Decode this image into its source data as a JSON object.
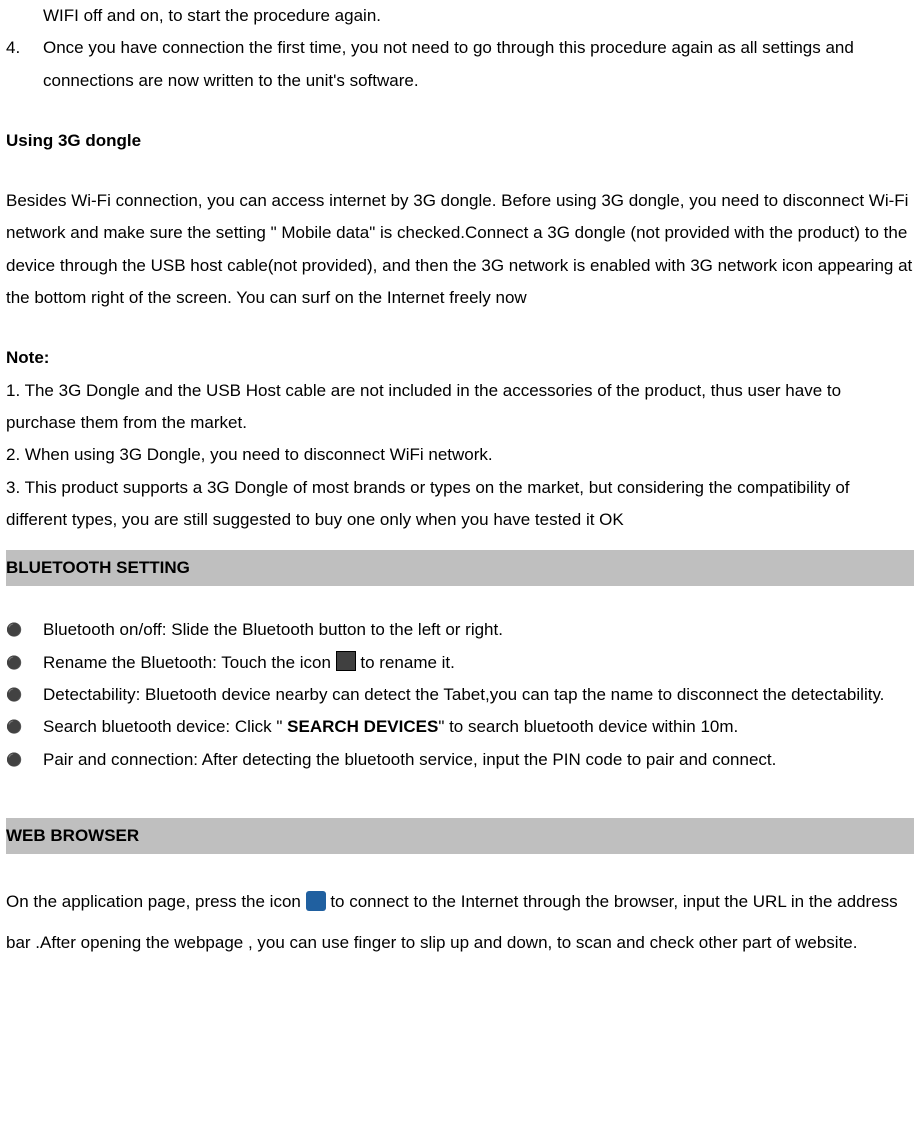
{
  "list_top": {
    "item3_cont": "WIFI off and on, to start the procedure again.",
    "item4_num": "4.",
    "item4_text": "Once you have connection the first time, you not need to go through this procedure again as all settings and connections are now written to the unit's software."
  },
  "dongle": {
    "heading": "Using 3G dongle",
    "para": "Besides Wi-Fi connection, you can access internet by 3G dongle. Before using 3G dongle, you need to disconnect Wi-Fi network and make sure the setting \" Mobile data\" is checked.Connect a 3G dongle (not provided with the product) to the device through the USB host cable(not provided), and then the 3G network is enabled with 3G network icon appearing at the bottom right of the screen. You can surf on the Internet freely now"
  },
  "note": {
    "label": "Note:",
    "n1": "1. The 3G Dongle and the USB Host cable are not included in the accessories of the product, thus user have to purchase them from the market.",
    "n2": "2. When using 3G Dongle, you need to disconnect WiFi network.",
    "n3": "3. This product supports a 3G Dongle of most brands or types on the market, but considering the compatibility of different types, you are still suggested to buy one only when you have tested it OK"
  },
  "bluetooth": {
    "header": "BLUETOOTH SETTING",
    "b1": "Bluetooth on/off:    Slide the Bluetooth button to the left or right.",
    "b2_pre": "Rename the Bluetooth: Touch the icon ",
    "b2_post": " to rename it.",
    "b3": "Detectability: Bluetooth device nearby can detect the Tabet,you can tap the name to disconnect the detectability.",
    "b4_pre": "Search bluetooth device: Click \" ",
    "b4_bold": "SEARCH DEVICES",
    "b4_post": "\" to search bluetooth device within 10m.",
    "b5": "Pair and connection: After detecting the bluetooth service, input the PIN code to pair and connect."
  },
  "web": {
    "header": "WEB BROWSER",
    "p_pre": "On the application page, press the icon ",
    "p_post": " to connect to the Internet through the browser, input the URL in the address bar .After opening the webpage , you can use finger to slip up and down, to scan and check other part of website."
  },
  "style": {
    "font_family": "Arial",
    "body_fontsize": 17,
    "line_height": 1.9,
    "text_color": "#000000",
    "background_color": "#ffffff",
    "section_bg": "#bfbfbf",
    "icon_bg": "#404040",
    "globe_bg": "#2060a0"
  }
}
